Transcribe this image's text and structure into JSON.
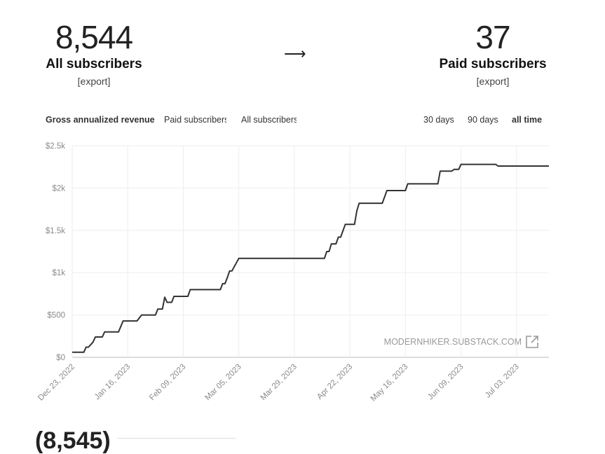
{
  "stats": {
    "left": {
      "number": "8,544",
      "label": "All subscribers",
      "export": "[export]"
    },
    "arrow": "⟶",
    "right": {
      "number": "37",
      "label": "Paid subscribers",
      "export": "[export]"
    }
  },
  "metric_tabs": [
    {
      "label": "Gross annualized revenue",
      "active": true
    },
    {
      "label": "Paid subscribers",
      "active": false
    },
    {
      "label": "All subscribers",
      "active": false
    }
  ],
  "range_tabs": [
    {
      "label": "30 days",
      "active": false
    },
    {
      "label": "90 days",
      "active": false
    },
    {
      "label": "all time",
      "active": true
    }
  ],
  "watermark": "MODERNHIKER.SUBSTACK.COM",
  "bottom_partial": "(8,545)",
  "colors": {
    "line": "#333333",
    "grid": "#eeeeee",
    "axis_text": "#8a8a8a"
  },
  "chart_data": {
    "type": "line",
    "ylim": [
      0,
      2500
    ],
    "y_ticks": [
      {
        "value": 0,
        "label": "$0"
      },
      {
        "value": 500,
        "label": "$500"
      },
      {
        "value": 1000,
        "label": "$1k"
      },
      {
        "value": 1500,
        "label": "$1.5k"
      },
      {
        "value": 2000,
        "label": "$2k"
      },
      {
        "value": 2500,
        "label": "$2.5k"
      }
    ],
    "x_start": "2022-12-23",
    "x_end": "2023-07-17",
    "x_ticks": [
      "Dec 23, 2022",
      "Jan 16, 2023",
      "Feb 09, 2023",
      "Mar 05, 2023",
      "Mar 29, 2023",
      "Apr 22, 2023",
      "May 16, 2023",
      "Jun 09, 2023",
      "Jul 03, 2023"
    ],
    "grid": true,
    "series": [
      {
        "points": [
          [
            "2022-12-23",
            60
          ],
          [
            "2022-12-28",
            60
          ],
          [
            "2022-12-29",
            120
          ],
          [
            "2022-12-30",
            120
          ],
          [
            "2023-01-01",
            180
          ],
          [
            "2023-01-02",
            240
          ],
          [
            "2023-01-05",
            240
          ],
          [
            "2023-01-06",
            300
          ],
          [
            "2023-01-12",
            300
          ],
          [
            "2023-01-14",
            430
          ],
          [
            "2023-01-20",
            430
          ],
          [
            "2023-01-22",
            500
          ],
          [
            "2023-01-28",
            500
          ],
          [
            "2023-01-29",
            570
          ],
          [
            "2023-01-31",
            570
          ],
          [
            "2023-02-01",
            710
          ],
          [
            "2023-02-02",
            650
          ],
          [
            "2023-02-04",
            650
          ],
          [
            "2023-02-05",
            720
          ],
          [
            "2023-02-11",
            720
          ],
          [
            "2023-02-12",
            800
          ],
          [
            "2023-02-25",
            800
          ],
          [
            "2023-02-26",
            870
          ],
          [
            "2023-02-27",
            870
          ],
          [
            "2023-02-28",
            940
          ],
          [
            "2023-03-01",
            1020
          ],
          [
            "2023-03-02",
            1020
          ],
          [
            "2023-03-05",
            1170
          ],
          [
            "2023-04-11",
            1170
          ],
          [
            "2023-04-12",
            1250
          ],
          [
            "2023-04-13",
            1250
          ],
          [
            "2023-04-14",
            1340
          ],
          [
            "2023-04-16",
            1340
          ],
          [
            "2023-04-17",
            1420
          ],
          [
            "2023-04-18",
            1420
          ],
          [
            "2023-04-20",
            1570
          ],
          [
            "2023-04-24",
            1570
          ],
          [
            "2023-04-25",
            1730
          ],
          [
            "2023-04-26",
            1820
          ],
          [
            "2023-05-06",
            1820
          ],
          [
            "2023-05-08",
            1970
          ],
          [
            "2023-05-16",
            1970
          ],
          [
            "2023-05-17",
            2050
          ],
          [
            "2023-05-30",
            2050
          ],
          [
            "2023-05-31",
            2200
          ],
          [
            "2023-06-05",
            2200
          ],
          [
            "2023-06-06",
            2220
          ],
          [
            "2023-06-08",
            2220
          ],
          [
            "2023-06-09",
            2280
          ],
          [
            "2023-06-24",
            2280
          ],
          [
            "2023-06-25",
            2260
          ],
          [
            "2023-07-17",
            2260
          ]
        ]
      }
    ]
  }
}
